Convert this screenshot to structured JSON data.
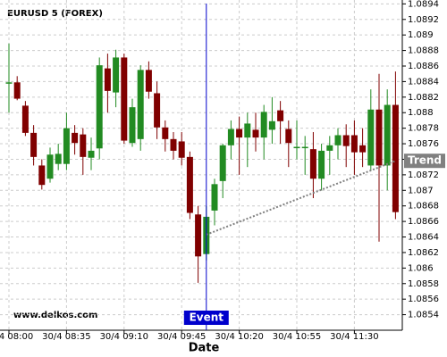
{
  "chart_data": {
    "type": "candlestick",
    "title": "EURUSD 5 (FOREX)",
    "x_label": "Date",
    "watermark": "www.delkos.com",
    "categories": [
      "30/4 08:00",
      null,
      null,
      null,
      null,
      null,
      null,
      "30/4 08:35",
      null,
      null,
      null,
      null,
      null,
      null,
      "30/4 09:10",
      null,
      null,
      null,
      null,
      null,
      null,
      "30/4 09:45",
      null,
      null,
      null,
      null,
      null,
      null,
      "30/4 10:20",
      null,
      null,
      null,
      null,
      null,
      null,
      "30/4 10:55",
      null,
      null,
      null,
      null,
      null,
      null,
      "30/4 11:30",
      null,
      null,
      null,
      null,
      null
    ],
    "open": [
      1.08839,
      1.08839,
      1.08809,
      1.08774,
      1.08732,
      1.08715,
      1.08734,
      1.08734,
      1.08774,
      1.08772,
      1.08742,
      1.08754,
      1.08857,
      1.08826,
      1.08871,
      1.08761,
      1.08766,
      1.08855,
      1.08825,
      1.08781,
      1.08766,
      1.08763,
      1.08743,
      1.08669,
      1.08618,
      1.08674,
      1.08712,
      1.08758,
      1.08779,
      1.08768,
      1.08778,
      1.08768,
      1.08778,
      1.08803,
      1.08779,
      1.08756,
      1.08756,
      1.08753,
      1.08715,
      1.08751,
      1.08758,
      1.08771,
      1.08771,
      1.08758,
      1.08732,
      1.08804,
      1.08732,
      1.0881
    ],
    "high": [
      1.08889,
      1.08847,
      1.08815,
      1.08784,
      1.0874,
      1.08755,
      1.0876,
      1.088,
      1.08784,
      1.0878,
      1.08768,
      1.08871,
      1.08876,
      1.08881,
      1.08876,
      1.08818,
      1.08861,
      1.08866,
      1.0884,
      1.0879,
      1.08775,
      1.08775,
      1.0875,
      1.0868,
      1.0868,
      1.08715,
      1.0876,
      1.0879,
      1.08795,
      1.088,
      1.088,
      1.0881,
      1.0882,
      1.08815,
      1.0879,
      1.0879,
      1.0877,
      1.08775,
      1.0876,
      1.0877,
      1.0878,
      1.08785,
      1.0879,
      1.0878,
      1.0883,
      1.0885,
      1.0883,
      1.08853
    ],
    "low": [
      1.088,
      1.08816,
      1.0877,
      1.08732,
      1.08701,
      1.0871,
      1.08726,
      1.08726,
      1.08746,
      1.0872,
      1.08726,
      1.0874,
      1.088,
      1.08807,
      1.0876,
      1.08756,
      1.08751,
      1.08818,
      1.08766,
      1.0875,
      1.0874,
      1.08732,
      1.08663,
      1.08581,
      1.0861,
      1.08655,
      1.0869,
      1.0874,
      1.0872,
      1.0873,
      1.0875,
      1.0874,
      1.0876,
      1.0876,
      1.0873,
      1.0874,
      1.0872,
      1.0869,
      1.087,
      1.0872,
      1.0874,
      1.0873,
      1.0872,
      1.0873,
      1.08725,
      1.08634,
      1.087,
      1.08663
    ],
    "close": [
      1.08839,
      1.08818,
      1.08774,
      1.08743,
      1.08707,
      1.08746,
      1.08747,
      1.0878,
      1.08761,
      1.08743,
      1.08751,
      1.08861,
      1.08828,
      1.08871,
      1.08764,
      1.08807,
      1.08855,
      1.08827,
      1.08781,
      1.08766,
      1.08751,
      1.08742,
      1.08671,
      1.08615,
      1.08666,
      1.08708,
      1.08758,
      1.08779,
      1.08768,
      1.08786,
      1.08768,
      1.08801,
      1.08789,
      1.08789,
      1.08761,
      1.08756,
      1.08756,
      1.08715,
      1.08751,
      1.08758,
      1.08771,
      1.08757,
      1.08749,
      1.08749,
      1.08804,
      1.08732,
      1.0881,
      1.08672
    ],
    "up_color": "#228b22",
    "down_color": "#800000",
    "ylim": [
      1.0852,
      1.08945
    ],
    "yticks": [
      1.0854,
      1.0856,
      1.0858,
      1.086,
      1.0862,
      1.0864,
      1.0866,
      1.0868,
      1.087,
      1.0872,
      1.0874,
      1.0876,
      1.0878,
      1.088,
      1.0882,
      1.0884,
      1.0886,
      1.0888,
      1.089,
      1.0892,
      1.0894
    ],
    "grid": true,
    "event": {
      "label": "Event",
      "x": 24,
      "color": "#0000cc"
    },
    "trend": {
      "label": "Trend",
      "x": [
        24,
        47
      ],
      "values": [
        1.08643,
        1.08738
      ],
      "color": "#808080"
    }
  }
}
